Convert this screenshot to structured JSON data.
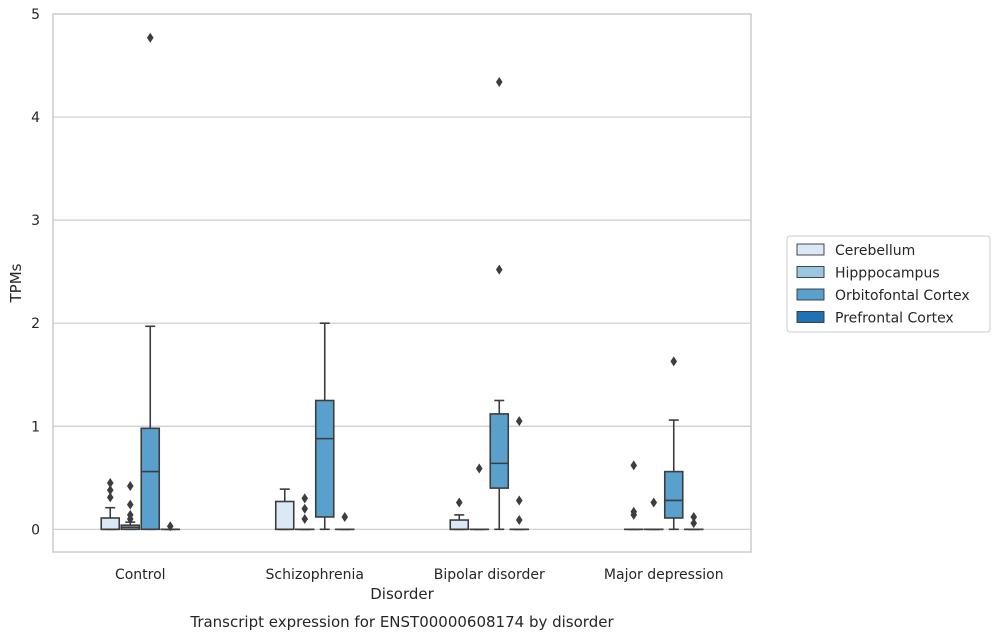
{
  "chart_data": {
    "type": "box",
    "title": "",
    "caption": "Transcript expression for ENST00000608174 by disorder",
    "xlabel": "Disorder",
    "ylabel": "TPMs",
    "ylim": [
      -0.22,
      5.0
    ],
    "yticks": [
      0,
      1,
      2,
      3,
      4,
      5
    ],
    "grid": true,
    "legend_position": "right",
    "categories": [
      "Control",
      "Schizophrenia",
      "Bipolar disorder",
      "Major depression"
    ],
    "series": [
      {
        "name": "Cerebellum",
        "color": "#dbe9f6",
        "boxes": [
          {
            "category": "Control",
            "min": 0,
            "q1": 0,
            "median": 0,
            "q3": 0.11,
            "max": 0.21,
            "outliers": [
              0.31,
              0.38,
              0.45
            ]
          },
          {
            "category": "Schizophrenia",
            "min": 0,
            "q1": 0,
            "median": 0,
            "q3": 0.27,
            "max": 0.39,
            "outliers": []
          },
          {
            "category": "Bipolar disorder",
            "min": 0,
            "q1": 0,
            "median": 0,
            "q3": 0.09,
            "max": 0.14,
            "outliers": [
              0.26
            ]
          },
          {
            "category": "Major depression",
            "min": 0,
            "q1": 0,
            "median": 0,
            "q3": 0,
            "max": 0,
            "outliers": [
              0.14,
              0.17,
              0.62
            ]
          }
        ]
      },
      {
        "name": "Hipppocampus",
        "color": "#9ac8e0",
        "boxes": [
          {
            "category": "Control",
            "min": 0,
            "q1": 0,
            "median": 0.02,
            "q3": 0.04,
            "max": 0.07,
            "outliers": [
              0.1,
              0.14,
              0.24,
              0.42
            ]
          },
          {
            "category": "Schizophrenia",
            "min": 0,
            "q1": 0,
            "median": 0,
            "q3": 0,
            "max": 0,
            "outliers": [
              0.1,
              0.2,
              0.3
            ]
          },
          {
            "category": "Bipolar disorder",
            "min": 0,
            "q1": 0,
            "median": 0,
            "q3": 0,
            "max": 0,
            "outliers": [
              0.59
            ]
          },
          {
            "category": "Major depression",
            "min": 0,
            "q1": 0,
            "median": 0,
            "q3": 0,
            "max": 0,
            "outliers": [
              0.26
            ]
          }
        ]
      },
      {
        "name": "Orbitofontal Cortex",
        "color": "#5aa0cd",
        "boxes": [
          {
            "category": "Control",
            "min": 0,
            "q1": 0,
            "median": 0.56,
            "q3": 0.98,
            "max": 1.97,
            "outliers": [
              4.77
            ]
          },
          {
            "category": "Schizophrenia",
            "min": 0,
            "q1": 0.12,
            "median": 0.88,
            "q3": 1.25,
            "max": 2.0,
            "outliers": []
          },
          {
            "category": "Bipolar disorder",
            "min": 0,
            "q1": 0.4,
            "median": 0.64,
            "q3": 1.12,
            "max": 1.25,
            "outliers": [
              2.52,
              4.34
            ]
          },
          {
            "category": "Major depression",
            "min": 0,
            "q1": 0.11,
            "median": 0.28,
            "q3": 0.56,
            "max": 1.06,
            "outliers": [
              1.63
            ]
          }
        ]
      },
      {
        "name": "Prefrontal Cortex",
        "color": "#2171b5",
        "boxes": [
          {
            "category": "Control",
            "min": 0,
            "q1": 0,
            "median": 0,
            "q3": 0,
            "max": 0,
            "outliers": [
              0.03
            ]
          },
          {
            "category": "Schizophrenia",
            "min": 0,
            "q1": 0,
            "median": 0,
            "q3": 0,
            "max": 0,
            "outliers": [
              0.12
            ]
          },
          {
            "category": "Bipolar disorder",
            "min": 0,
            "q1": 0,
            "median": 0,
            "q3": 0,
            "max": 0,
            "outliers": [
              0.09,
              0.28,
              1.05
            ]
          },
          {
            "category": "Major depression",
            "min": 0,
            "q1": 0,
            "median": 0,
            "q3": 0,
            "max": 0,
            "outliers": [
              0.06,
              0.12
            ]
          }
        ]
      }
    ]
  }
}
